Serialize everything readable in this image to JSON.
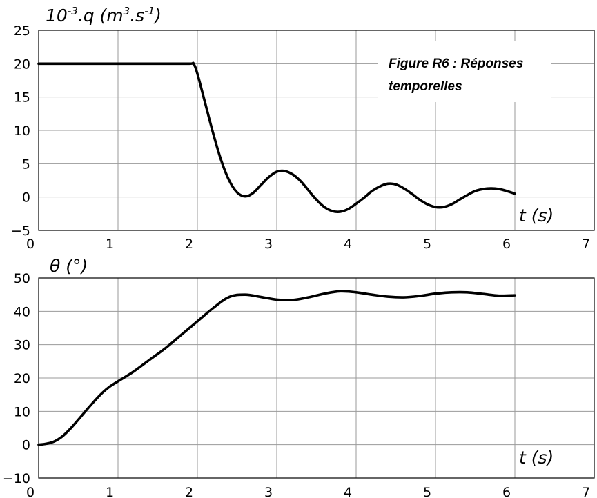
{
  "chart_data": [
    {
      "type": "line",
      "ylabel": "10-3.q (m3.s-1)",
      "ylabel_parts": {
        "base": "10",
        "exp1": "-3",
        "mid": ".q (m",
        "exp2": "3",
        "mid2": ".s",
        "exp3": "-1",
        "end": ")"
      },
      "xlabel": "t (s)",
      "annotation": [
        "Figure R6 : Réponses",
        "temporelles"
      ],
      "xlim": [
        0,
        7
      ],
      "ylim": [
        -5,
        25
      ],
      "xticks": [
        0,
        1,
        2,
        3,
        4,
        5,
        6,
        7
      ],
      "yticks": [
        25,
        20,
        15,
        10,
        5,
        0,
        -5
      ],
      "xtick_labels": [
        "0",
        "1",
        "2",
        "3",
        "4",
        "5",
        "6",
        "7"
      ],
      "ytick_labels": [
        "25",
        "20",
        "15",
        "10",
        "5",
        "0",
        "−5"
      ],
      "grid": true,
      "series": [
        {
          "x": [
            0,
            0.5,
            1.0,
            1.5,
            1.9,
            1.95,
            2.0,
            2.1,
            2.2,
            2.3,
            2.4,
            2.5,
            2.6,
            2.7,
            2.8,
            2.9,
            3.0,
            3.1,
            3.2,
            3.3,
            3.4,
            3.5,
            3.6,
            3.7,
            3.8,
            3.9,
            4.0,
            4.1,
            4.2,
            4.3,
            4.4,
            4.5,
            4.6,
            4.7,
            4.8,
            4.9,
            5.0,
            5.1,
            5.2,
            5.3,
            5.4,
            5.5,
            5.6,
            5.7,
            5.8,
            5.9,
            6.0
          ],
          "y": [
            20,
            20,
            20,
            20,
            20,
            20,
            18.5,
            14,
            9.5,
            5.5,
            2.5,
            0.7,
            0.1,
            0.6,
            1.8,
            3.0,
            3.8,
            3.9,
            3.4,
            2.4,
            1.0,
            -0.4,
            -1.5,
            -2.1,
            -2.2,
            -1.8,
            -1.0,
            -0.1,
            0.9,
            1.6,
            2.0,
            1.9,
            1.3,
            0.5,
            -0.4,
            -1.1,
            -1.5,
            -1.5,
            -1.1,
            -0.4,
            0.3,
            0.9,
            1.2,
            1.3,
            1.2,
            0.9,
            0.5
          ]
        }
      ]
    },
    {
      "type": "line",
      "ylabel": "θ (°)",
      "xlabel": "t (s)",
      "xlim": [
        0,
        7
      ],
      "ylim": [
        -10,
        50
      ],
      "xticks": [
        0,
        1,
        2,
        3,
        4,
        5,
        6,
        7
      ],
      "yticks": [
        50,
        40,
        30,
        20,
        10,
        0,
        -10
      ],
      "xtick_labels": [
        "0",
        "1",
        "2",
        "3",
        "4",
        "5",
        "6",
        "7"
      ],
      "ytick_labels": [
        "50",
        "40",
        "30",
        "20",
        "10",
        "0",
        "−10"
      ],
      "grid": true,
      "series": [
        {
          "x": [
            0,
            0.1,
            0.2,
            0.3,
            0.4,
            0.5,
            0.6,
            0.7,
            0.8,
            0.9,
            1.0,
            1.2,
            1.4,
            1.6,
            1.8,
            2.0,
            2.2,
            2.4,
            2.6,
            2.8,
            3.0,
            3.2,
            3.4,
            3.6,
            3.8,
            4.0,
            4.2,
            4.4,
            4.6,
            4.8,
            5.0,
            5.2,
            5.4,
            5.6,
            5.8,
            6.0
          ],
          "y": [
            0,
            0.3,
            1.0,
            2.5,
            4.8,
            7.5,
            10.3,
            13.0,
            15.5,
            17.5,
            19.0,
            22.0,
            25.5,
            29.0,
            33.0,
            37.0,
            41.0,
            44.3,
            45.0,
            44.3,
            43.5,
            43.4,
            44.2,
            45.3,
            46.0,
            45.7,
            45.0,
            44.4,
            44.2,
            44.6,
            45.3,
            45.7,
            45.7,
            45.2,
            44.7,
            44.8
          ]
        }
      ]
    }
  ]
}
